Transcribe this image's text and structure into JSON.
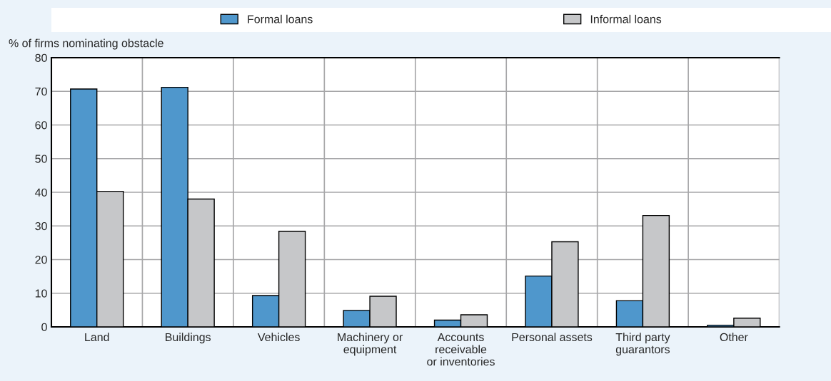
{
  "chart_data": {
    "type": "bar",
    "ylabel": "% of firms nominating obstacle",
    "categories": [
      "Land",
      "Buildings",
      "Vehicles",
      "Machinery or\nequipment",
      "Accounts\nreceivable\nor inventories",
      "Personal assets",
      "Third party\nguarantors",
      "Other"
    ],
    "series": [
      {
        "name": "Formal loans",
        "color": "#4f97cc",
        "values": [
          70.7,
          71.2,
          9.3,
          4.9,
          2.0,
          15.1,
          7.8,
          0.5
        ]
      },
      {
        "name": "Informal loans",
        "color": "#c6c7c9",
        "values": [
          40.3,
          38.0,
          28.4,
          9.1,
          3.6,
          25.3,
          33.1,
          2.6
        ]
      }
    ],
    "ylim": [
      0,
      80
    ],
    "yticks": [
      0,
      10,
      20,
      30,
      40,
      50,
      60,
      70,
      80
    ],
    "grid": true,
    "legend": "top"
  }
}
